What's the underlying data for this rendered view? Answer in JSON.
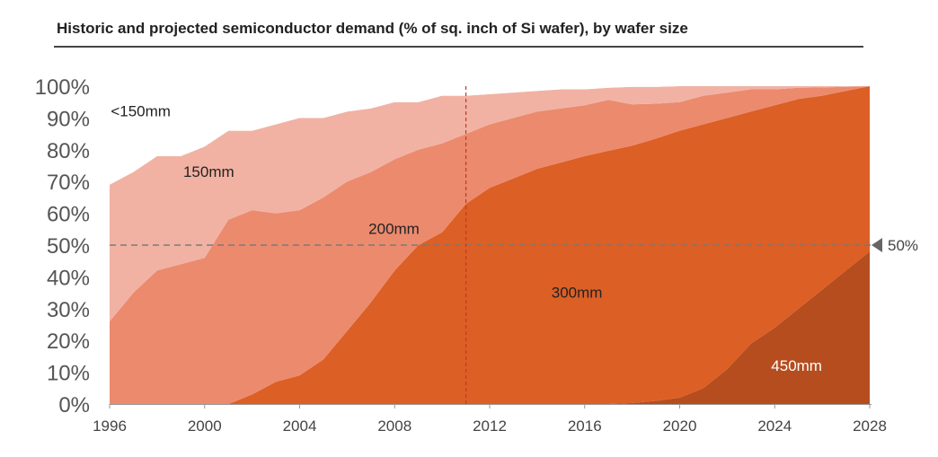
{
  "chart_data": {
    "type": "area",
    "stacked": true,
    "title": "Historic and projected semiconductor demand (% of sq. inch of Si wafer), by wafer size",
    "x": [
      1996,
      1997,
      1998,
      1999,
      2000,
      2001,
      2002,
      2003,
      2004,
      2005,
      2006,
      2007,
      2008,
      2009,
      2010,
      2011,
      2012,
      2013,
      2014,
      2015,
      2016,
      2017,
      2018,
      2019,
      2020,
      2021,
      2022,
      2023,
      2024,
      2025,
      2026,
      2027,
      2028
    ],
    "xlim": [
      1996,
      2028
    ],
    "x_ticks": [
      "1996",
      "2000",
      "2004",
      "2008",
      "2012",
      "2016",
      "2020",
      "2024",
      "2028"
    ],
    "ylim": [
      0,
      100
    ],
    "y_ticks": [
      "0%",
      "10%",
      "20%",
      "30%",
      "40%",
      "50%",
      "60%",
      "70%",
      "80%",
      "90%",
      "100%"
    ],
    "series": [
      {
        "name": "450mm",
        "color": "#b54d1f",
        "values": [
          0,
          0,
          0,
          0,
          0,
          0,
          0,
          0,
          0,
          0,
          0,
          0,
          0,
          0,
          0,
          0,
          0,
          0,
          0,
          0,
          0,
          0,
          0.3,
          1,
          2,
          5,
          11,
          19,
          24,
          30,
          36,
          42,
          48
        ]
      },
      {
        "name": "300mm",
        "color": "#dc5f25",
        "values": [
          0,
          0,
          0,
          0,
          0,
          0,
          3,
          7,
          9,
          14,
          23,
          32,
          42,
          50,
          54,
          63,
          68,
          71,
          74,
          76,
          78,
          79.7,
          81,
          82.5,
          84,
          83,
          79,
          73,
          70,
          66,
          61,
          56.5,
          52
        ]
      },
      {
        "name": "200mm",
        "color": "#ec8a6e",
        "values": [
          26,
          35,
          42,
          44,
          46,
          58,
          58,
          53,
          52,
          51,
          47,
          41,
          35,
          30,
          28,
          22,
          20,
          19,
          18,
          17,
          16,
          16,
          13,
          11,
          9,
          9,
          8,
          7,
          5,
          3.5,
          2.6,
          1.3,
          0
        ]
      },
      {
        "name": "150mm",
        "color": "#f1b2a3",
        "values": [
          43,
          38,
          36,
          34,
          35,
          28,
          25,
          28,
          29,
          25,
          22,
          20,
          18,
          15,
          15,
          12,
          9.5,
          8,
          6.5,
          6,
          5,
          3.8,
          5.5,
          5.3,
          5,
          3,
          2,
          1,
          1,
          0.5,
          0.4,
          0.2,
          0
        ]
      },
      {
        "name": "<150mm",
        "color": "#ffffff",
        "values": [
          31,
          27,
          22,
          22,
          19,
          14,
          14,
          12,
          10,
          10,
          8,
          7,
          5,
          5,
          3,
          3,
          2.5,
          2,
          1.5,
          1,
          1,
          0.5,
          0.2,
          0.2,
          0,
          0,
          0,
          0,
          0,
          0,
          0,
          0,
          0
        ]
      }
    ],
    "reference_lines": [
      {
        "type": "horizontal",
        "value": 50,
        "label": "50%",
        "style": "dashed",
        "color": "#7a7a7a"
      },
      {
        "type": "vertical",
        "value": 2011,
        "style": "dashed",
        "color": "#c0392b"
      }
    ],
    "annotations": {
      "lt150": "<150mm",
      "s150": "150mm",
      "s200": "200mm",
      "s300": "300mm",
      "s450": "450mm",
      "fifty": "50%"
    },
    "grid": false,
    "legend": "none"
  }
}
